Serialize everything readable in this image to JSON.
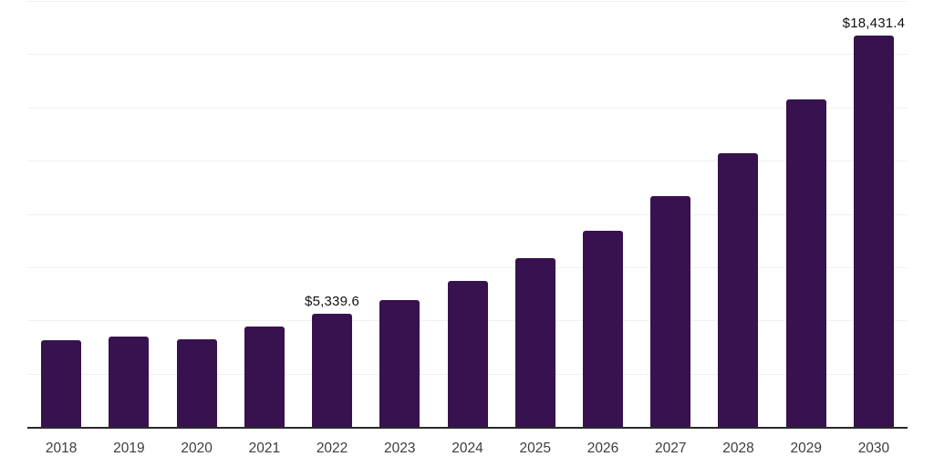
{
  "chart_data": {
    "type": "bar",
    "title": "",
    "categories": [
      "2018",
      "2019",
      "2020",
      "2021",
      "2022",
      "2023",
      "2024",
      "2025",
      "2026",
      "2027",
      "2028",
      "2029",
      "2030"
    ],
    "values": [
      4100,
      4280,
      4160,
      4760,
      5339.6,
      6010,
      6900,
      7960,
      9250,
      10870,
      12890,
      15420,
      18431.4
    ],
    "data_labels": [
      "",
      "",
      "",
      "",
      "$5,339.6",
      "",
      "",
      "",
      "",
      "",
      "",
      "",
      "$18,431.4"
    ],
    "xlabel": "",
    "ylabel": "",
    "ylim": [
      0,
      20000
    ],
    "gridline_step": 2500,
    "grid": true,
    "legend": false,
    "y_axis_labels_visible": false,
    "currency_prefix": "$"
  },
  "colors": {
    "bar": "#37124E",
    "background": "#ffffff",
    "gridline": "#f0f0f1",
    "axis_line": "#2a2a2a",
    "tick_label": "#3d3d3d",
    "data_label": "#111111"
  }
}
